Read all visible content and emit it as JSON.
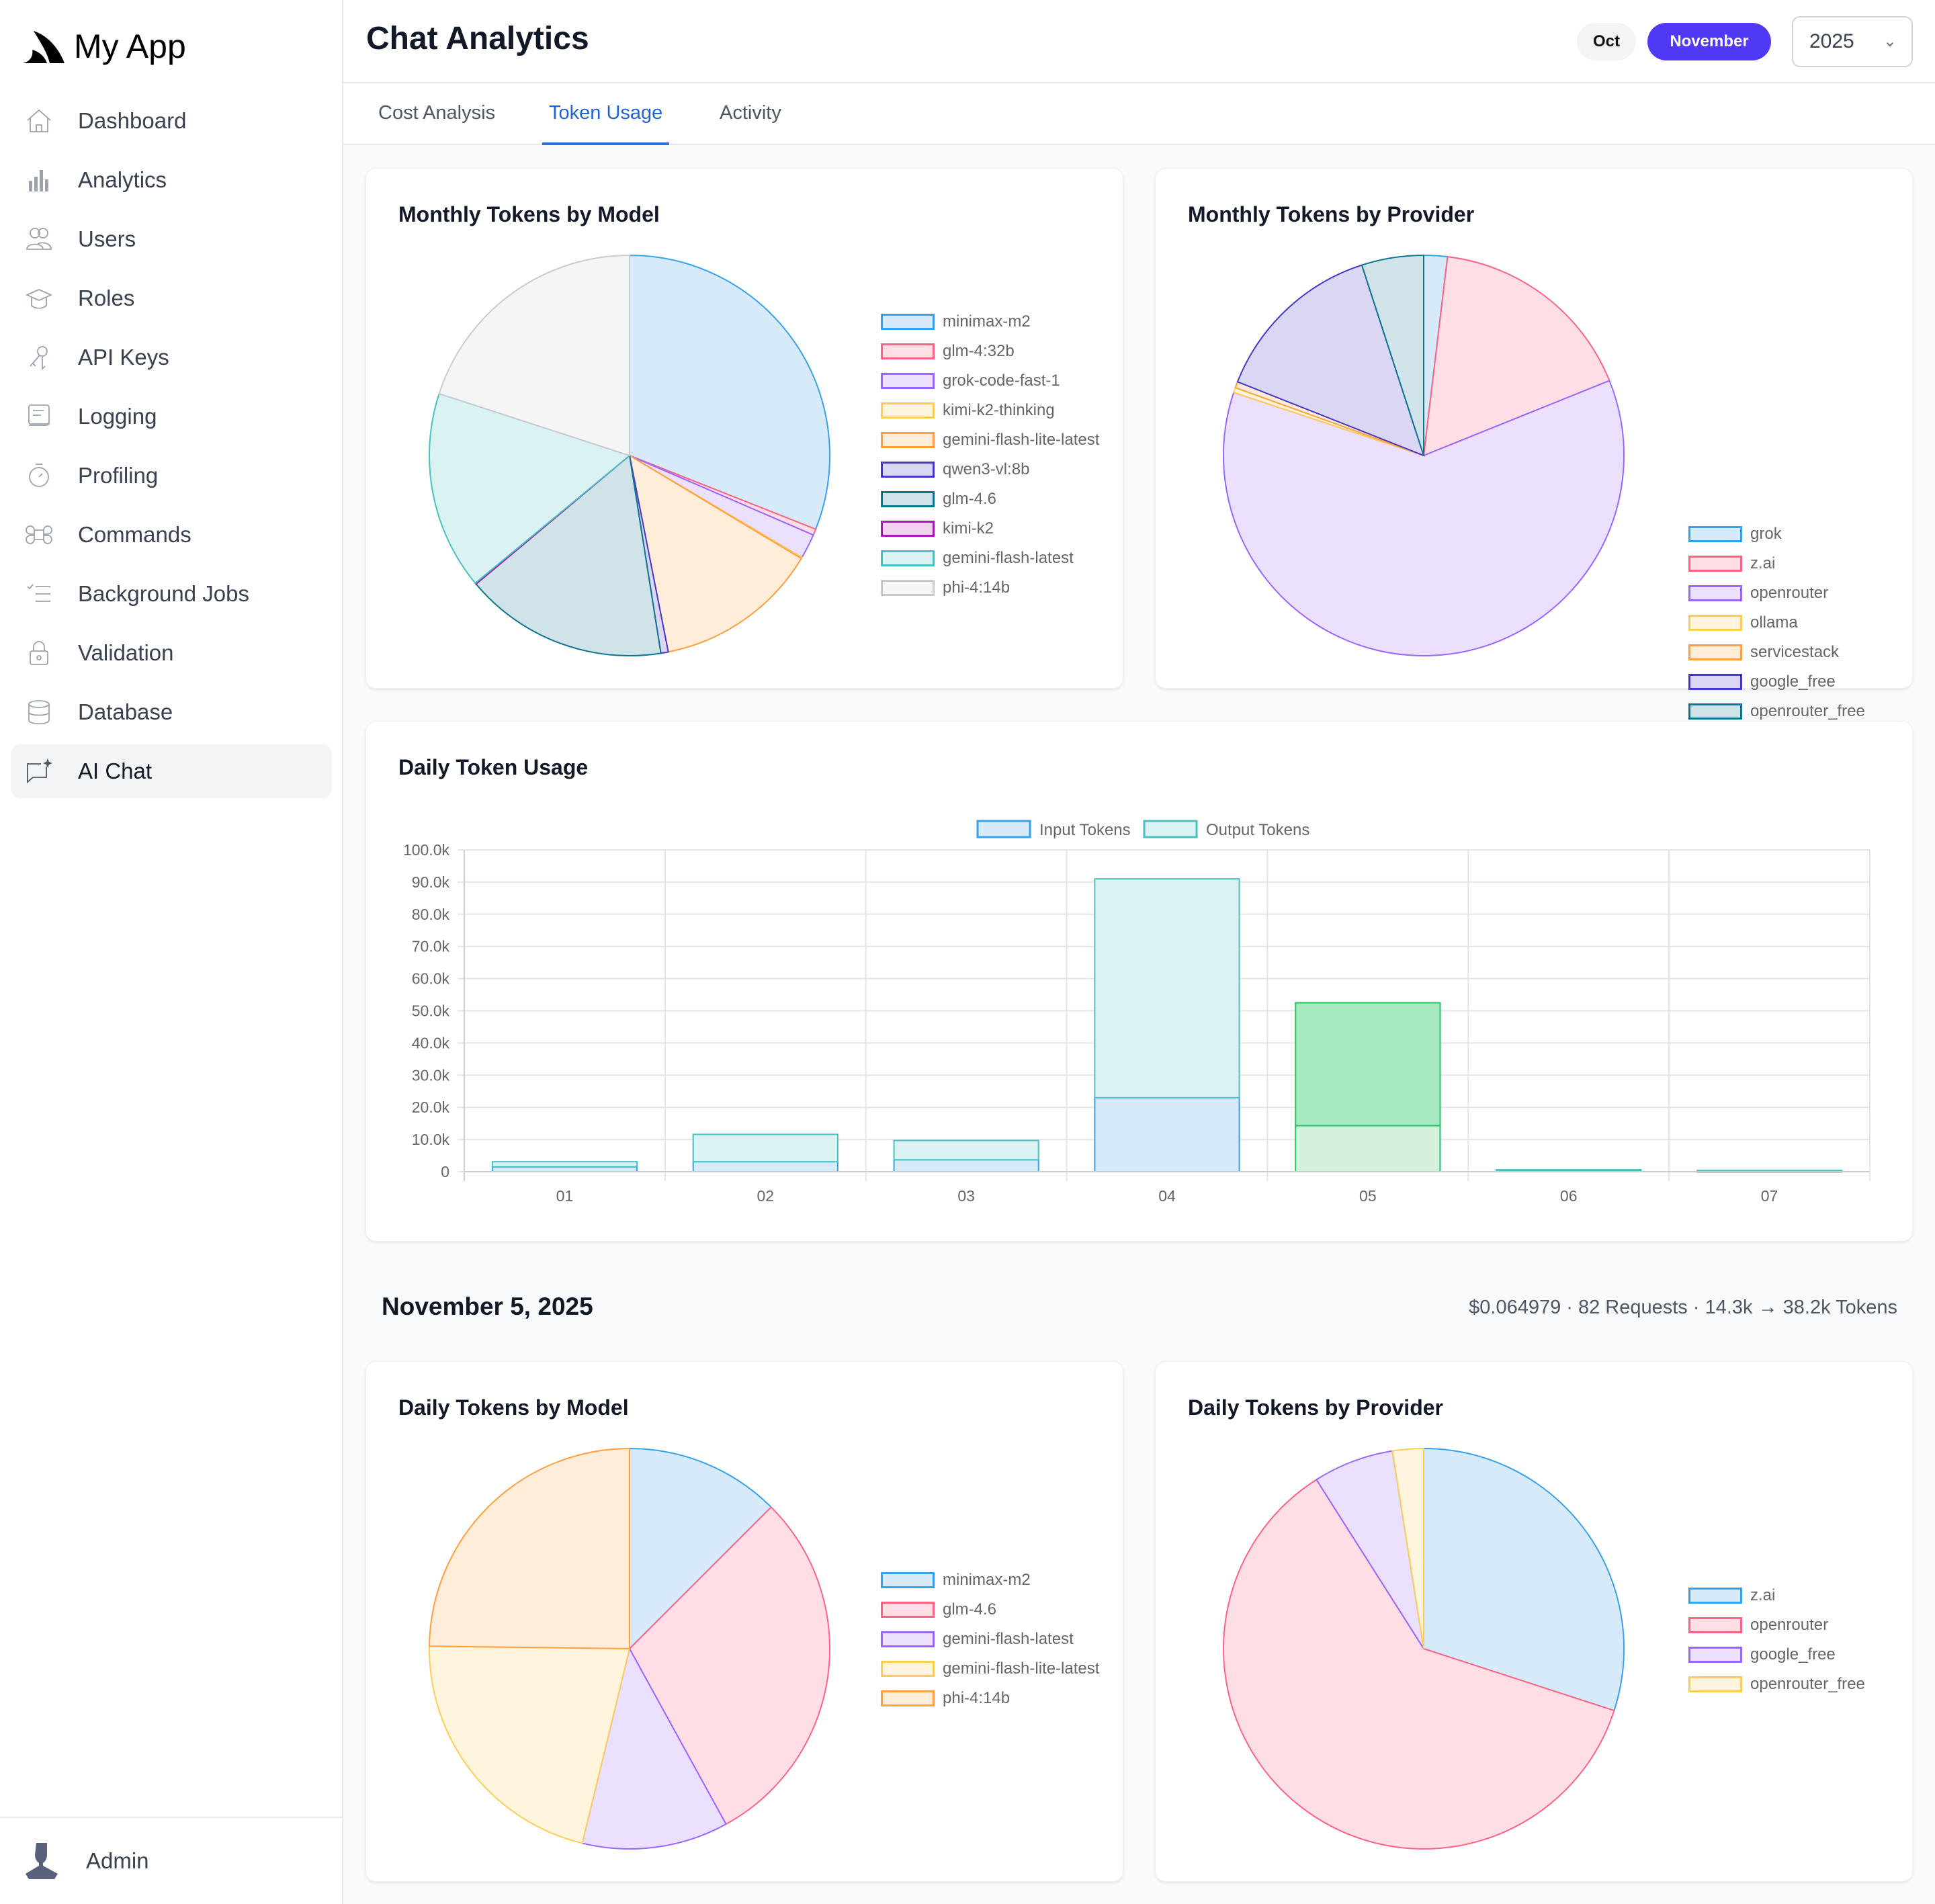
{
  "app": {
    "name": "My App",
    "user": "Admin"
  },
  "sidebar": {
    "items": [
      {
        "label": "Dashboard",
        "icon": "home-icon",
        "active": false
      },
      {
        "label": "Analytics",
        "icon": "bar-chart-icon",
        "active": false
      },
      {
        "label": "Users",
        "icon": "users-icon",
        "active": false
      },
      {
        "label": "Roles",
        "icon": "graduation-cap-icon",
        "active": false
      },
      {
        "label": "API Keys",
        "icon": "keys-icon",
        "active": false
      },
      {
        "label": "Logging",
        "icon": "log-icon",
        "active": false
      },
      {
        "label": "Profiling",
        "icon": "stopwatch-icon",
        "active": false
      },
      {
        "label": "Commands",
        "icon": "command-icon",
        "active": false
      },
      {
        "label": "Background Jobs",
        "icon": "checklist-icon",
        "active": false
      },
      {
        "label": "Validation",
        "icon": "lock-icon",
        "active": false
      },
      {
        "label": "Database",
        "icon": "database-icon",
        "active": false
      },
      {
        "label": "AI Chat",
        "icon": "ai-chat-icon",
        "active": true
      }
    ]
  },
  "header": {
    "title": "Chat Analytics",
    "months": [
      {
        "label": "Oct",
        "selected": false
      },
      {
        "label": "November",
        "selected": true
      }
    ],
    "year": "2025"
  },
  "tabs": [
    {
      "label": "Cost Analysis",
      "active": false
    },
    {
      "label": "Token Usage",
      "active": true
    },
    {
      "label": "Activity",
      "active": false
    }
  ],
  "day": {
    "title": "November 5, 2025",
    "summary": "$0.064979 · 82 Requests · 14.3k → 38.2k Tokens"
  },
  "chart_data": [
    {
      "id": "monthly-model",
      "type": "pie",
      "title": "Monthly Tokens by Model",
      "legend": "right",
      "slices": [
        {
          "label": "minimax-m2",
          "value": 31.0,
          "color": "#36a2eb",
          "fill": "#d7eafa"
        },
        {
          "label": "glm-4:32b",
          "value": 0.5,
          "color": "#ff6384",
          "fill": "#ffdfe5"
        },
        {
          "label": "grok-code-fast-1",
          "value": 2.0,
          "color": "#9966ff",
          "fill": "#ebe0ff"
        },
        {
          "label": "kimi-k2-thinking",
          "value": 0.1,
          "color": "#ffcd56",
          "fill": "#fff5dd"
        },
        {
          "label": "gemini-flash-lite-latest",
          "value": 13.3,
          "color": "#ff9f40",
          "fill": "#ffecd9"
        },
        {
          "label": "qwen3-vl:8b",
          "value": 0.6,
          "color": "#4338ca",
          "fill": "#dad7f4"
        },
        {
          "label": "glm-4.6",
          "value": 16.4,
          "color": "#0e7490",
          "fill": "#cfe3e9"
        },
        {
          "label": "kimi-k2",
          "value": 0.1,
          "color": "#a21caf",
          "fill": "#f0d2ef"
        },
        {
          "label": "gemini-flash-latest",
          "value": 16.0,
          "color": "#4bc0c0",
          "fill": "#dbf2f2"
        },
        {
          "label": "phi-4:14b",
          "value": 20.0,
          "color": "#c9cbcf",
          "fill": "#f4f5f5"
        }
      ]
    },
    {
      "id": "monthly-provider",
      "type": "pie",
      "title": "Monthly Tokens by Provider",
      "legend": "right",
      "slices": [
        {
          "label": "grok",
          "value": 1.9,
          "color": "#36a2eb",
          "fill": "#d7eafa"
        },
        {
          "label": "z.ai",
          "value": 17.0,
          "color": "#ff6384",
          "fill": "#ffdfe5"
        },
        {
          "label": "openrouter",
          "value": 61.2,
          "color": "#9966ff",
          "fill": "#ebe0ff"
        },
        {
          "label": "ollama",
          "value": 0.4,
          "color": "#ffcd56",
          "fill": "#fff5dd"
        },
        {
          "label": "servicestack",
          "value": 0.5,
          "color": "#ff9f40",
          "fill": "#ffecd9"
        },
        {
          "label": "google_free",
          "value": 14.0,
          "color": "#4338ca",
          "fill": "#dad7f4"
        },
        {
          "label": "openrouter_free",
          "value": 5.0,
          "color": "#0e7490",
          "fill": "#cfe3e9"
        }
      ]
    },
    {
      "id": "daily-usage",
      "type": "bar",
      "stacked": true,
      "title": "Daily Token Usage",
      "legend": "top",
      "categories": [
        "01",
        "02",
        "03",
        "04",
        "05",
        "06",
        "07"
      ],
      "highlight_index": 4,
      "ylim": [
        0,
        100000
      ],
      "yticks": [
        "0",
        "10.0k",
        "20.0k",
        "30.0k",
        "40.0k",
        "50.0k",
        "60.0k",
        "70.0k",
        "80.0k",
        "90.0k",
        "100.0k"
      ],
      "grid": true,
      "series": [
        {
          "name": "Input Tokens",
          "color": "#36a2eb",
          "fill": "#d7eafa",
          "values": [
            1500,
            3100,
            3700,
            23000,
            14300,
            200,
            100
          ]
        },
        {
          "name": "Output Tokens",
          "color": "#4bc0c0",
          "fill": "#dbf2f2",
          "values": [
            1600,
            8500,
            6000,
            68000,
            38200,
            400,
            300
          ]
        }
      ]
    },
    {
      "id": "daily-model",
      "type": "pie",
      "title": "Daily Tokens by Model",
      "legend": "right",
      "slices": [
        {
          "label": "minimax-m2",
          "value": 12.5,
          "color": "#36a2eb",
          "fill": "#d7eafa"
        },
        {
          "label": "glm-4.6",
          "value": 29.5,
          "color": "#ff6384",
          "fill": "#ffdfe5"
        },
        {
          "label": "gemini-flash-latest",
          "value": 11.8,
          "color": "#9966ff",
          "fill": "#ebe0ff"
        },
        {
          "label": "gemini-flash-lite-latest",
          "value": 21.4,
          "color": "#ffcd56",
          "fill": "#fff5dd"
        },
        {
          "label": "phi-4:14b",
          "value": 24.8,
          "color": "#ff9f40",
          "fill": "#ffecd9"
        }
      ]
    },
    {
      "id": "daily-provider",
      "type": "pie",
      "title": "Daily Tokens by Provider",
      "legend": "right",
      "slices": [
        {
          "label": "z.ai",
          "value": 30.0,
          "color": "#36a2eb",
          "fill": "#d7eafa"
        },
        {
          "label": "openrouter",
          "value": 61.0,
          "color": "#ff6384",
          "fill": "#ffdfe5"
        },
        {
          "label": "google_free",
          "value": 6.5,
          "color": "#9966ff",
          "fill": "#ebe0ff"
        },
        {
          "label": "openrouter_free",
          "value": 2.5,
          "color": "#ffcd56",
          "fill": "#fff5dd"
        }
      ]
    }
  ]
}
